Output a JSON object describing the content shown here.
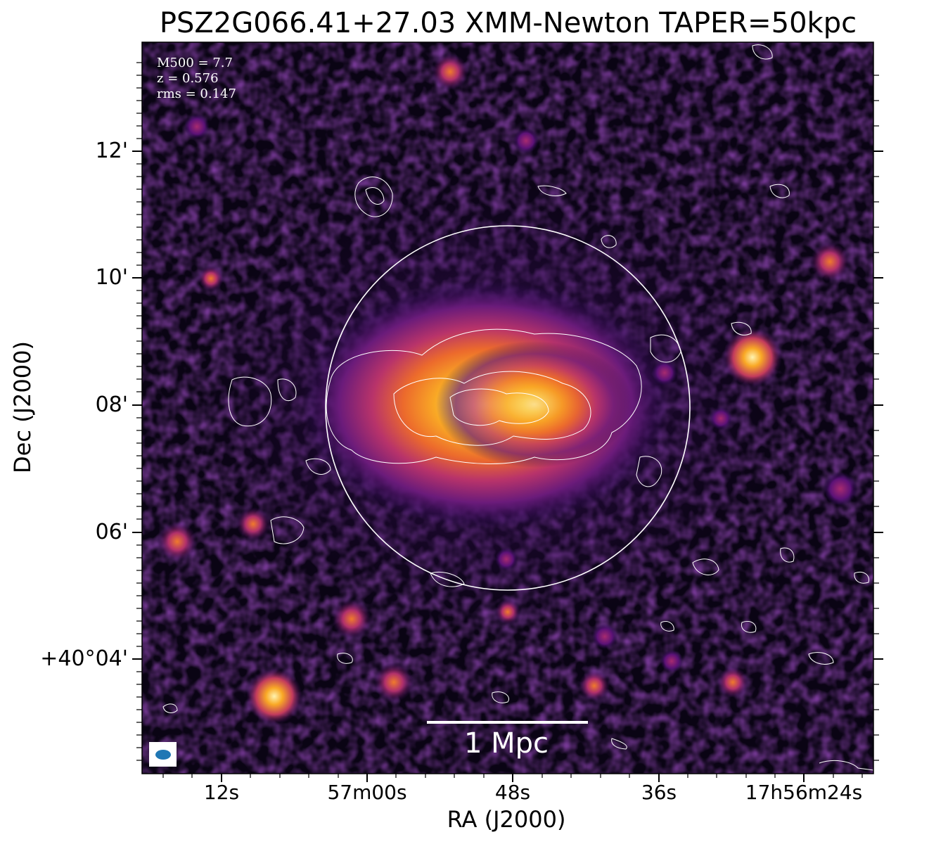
{
  "title": "PSZ2G066.41+27.03 XMM-Newton TAPER=50kpc",
  "x_axis": {
    "label": "RA (J2000)",
    "ticks": [
      "12s",
      "57m00s",
      "48s",
      "36s",
      "17h56m24s"
    ]
  },
  "y_axis": {
    "label": "Dec (J2000)",
    "ticks": [
      "12'",
      "10'",
      "08'",
      "06'",
      "+40°04'"
    ]
  },
  "info": {
    "mass": "M500 = 7.7",
    "redshift": "z = 0.576",
    "rms": "rms = 0.147"
  },
  "scale_bar": {
    "label": "1 Mpc"
  },
  "colors": {
    "colormap": [
      "#000004",
      "#2a0a54",
      "#5c1277",
      "#a72b6f",
      "#e3573a",
      "#f99b1e",
      "#fbe59b"
    ],
    "contours": "#ffffff",
    "beam": "#1f77b4"
  }
}
